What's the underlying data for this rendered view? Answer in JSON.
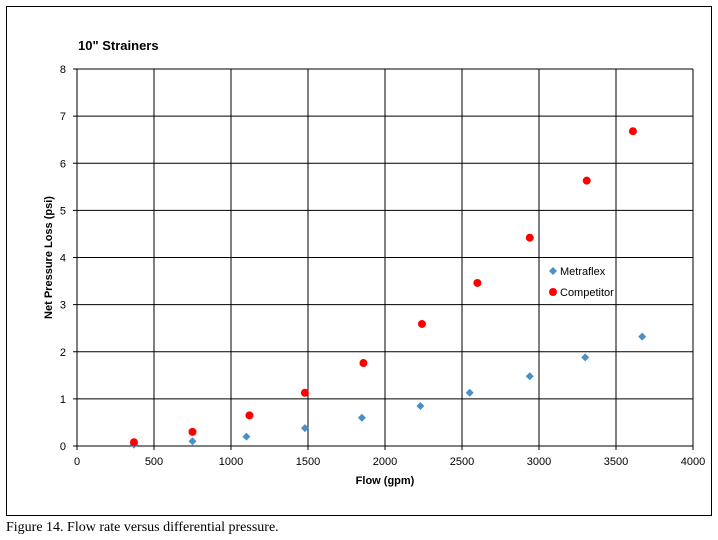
{
  "chart_data": {
    "type": "scatter",
    "title": "10\" Strainers",
    "xlabel": "Flow (gpm)",
    "ylabel": "Net Pressure Loss (psi)",
    "xlim": [
      0,
      4000
    ],
    "ylim": [
      0,
      8
    ],
    "xticks": [
      "0",
      "500",
      "1000",
      "1500",
      "2000",
      "2500",
      "3000",
      "3500",
      "4000"
    ],
    "yticks": [
      "0",
      "1",
      "2",
      "3",
      "4",
      "5",
      "6",
      "7",
      "8"
    ],
    "grid": true,
    "legend_position": "right-center",
    "series": [
      {
        "name": "Metraflex",
        "color": "#4a90c8",
        "marker": "diamond",
        "points": [
          [
            370,
            0.03
          ],
          [
            750,
            0.1
          ],
          [
            1100,
            0.2
          ],
          [
            1480,
            0.38
          ],
          [
            1850,
            0.6
          ],
          [
            2230,
            0.85
          ],
          [
            2550,
            1.13
          ],
          [
            2940,
            1.48
          ],
          [
            3300,
            1.88
          ],
          [
            3670,
            2.32
          ]
        ]
      },
      {
        "name": "Competitor",
        "color": "#ff0000",
        "marker": "circle",
        "points": [
          [
            370,
            0.08
          ],
          [
            750,
            0.3
          ],
          [
            1120,
            0.65
          ],
          [
            1480,
            1.13
          ],
          [
            1860,
            1.76
          ],
          [
            2240,
            2.59
          ],
          [
            2600,
            3.46
          ],
          [
            2940,
            4.42
          ],
          [
            3310,
            5.63
          ],
          [
            3610,
            6.68
          ]
        ]
      }
    ]
  },
  "caption": "Figure 14.  Flow rate versus differential pressure."
}
